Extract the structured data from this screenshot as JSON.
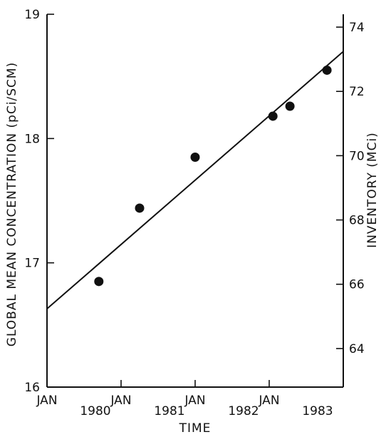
{
  "chart_data": {
    "type": "scatter",
    "xlabel": "TIME",
    "ylabel_left": "GLOBAL MEAN CONCENTRATION (pCi/SCM)",
    "ylabel_right": "INVENTORY (MCi)",
    "xlim": [
      1979.5,
      1983.5
    ],
    "ylim_left": [
      16,
      19
    ],
    "ylim_right": [
      62.8,
      74.4
    ],
    "x_ticks": [
      {
        "value": 1979.5,
        "upper": "JAN",
        "lower": ""
      },
      {
        "value": 1980.5,
        "upper": "JAN",
        "lower": "1980"
      },
      {
        "value": 1981.5,
        "upper": "JAN",
        "lower": "1981"
      },
      {
        "value": 1982.5,
        "upper": "JAN",
        "lower": "1982"
      },
      {
        "value": 1983.5,
        "upper": "",
        "lower": "1983"
      }
    ],
    "y_ticks_left": [
      16,
      17,
      18,
      19
    ],
    "y_ticks_right": [
      64,
      66,
      68,
      70,
      72,
      74
    ],
    "series": [
      {
        "points": [
          {
            "x": 1980.2,
            "y": 16.85
          },
          {
            "x": 1980.75,
            "y": 17.44
          },
          {
            "x": 1981.5,
            "y": 17.85
          },
          {
            "x": 1982.55,
            "y": 18.18
          },
          {
            "x": 1982.78,
            "y": 18.26
          },
          {
            "x": 1983.28,
            "y": 18.55
          }
        ]
      }
    ],
    "trend_line": {
      "x": [
        1979.5,
        1983.5
      ],
      "y": [
        16.63,
        18.7
      ]
    },
    "grid": false
  }
}
